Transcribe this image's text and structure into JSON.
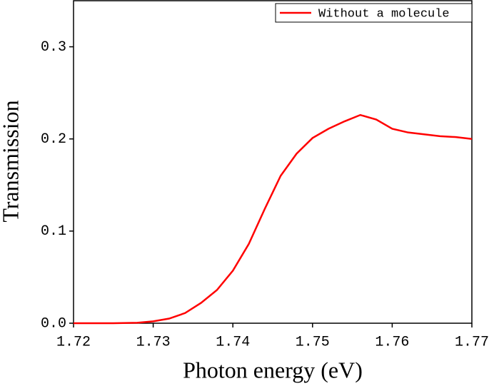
{
  "chart_data": {
    "type": "line",
    "x_label": "Photon energy (eV)",
    "y_label": "Transmission",
    "x": [
      1.72,
      1.725,
      1.728,
      1.73,
      1.732,
      1.734,
      1.736,
      1.738,
      1.74,
      1.742,
      1.744,
      1.746,
      1.748,
      1.75,
      1.752,
      1.754,
      1.756,
      1.758,
      1.76,
      1.762,
      1.764,
      1.766,
      1.768,
      1.77
    ],
    "series": [
      {
        "name": "Without a molecule",
        "color": "#ff0000",
        "values": [
          0,
          0,
          0.0005,
          0.002,
          0.005,
          0.011,
          0.022,
          0.036,
          0.057,
          0.086,
          0.124,
          0.16,
          0.184,
          0.201,
          0.211,
          0.219,
          0.226,
          0.221,
          0.211,
          0.207,
          0.205,
          0.203,
          0.202,
          0.2
        ]
      }
    ],
    "xlim": [
      1.72,
      1.77
    ],
    "ylim": [
      0,
      0.35
    ],
    "xticks": [
      1.72,
      1.73,
      1.74,
      1.75,
      1.76,
      1.77
    ],
    "yticks": [
      {
        "value": 0,
        "label": "0.0"
      },
      0.1,
      0.2,
      0.3
    ],
    "legend": "upper right"
  }
}
